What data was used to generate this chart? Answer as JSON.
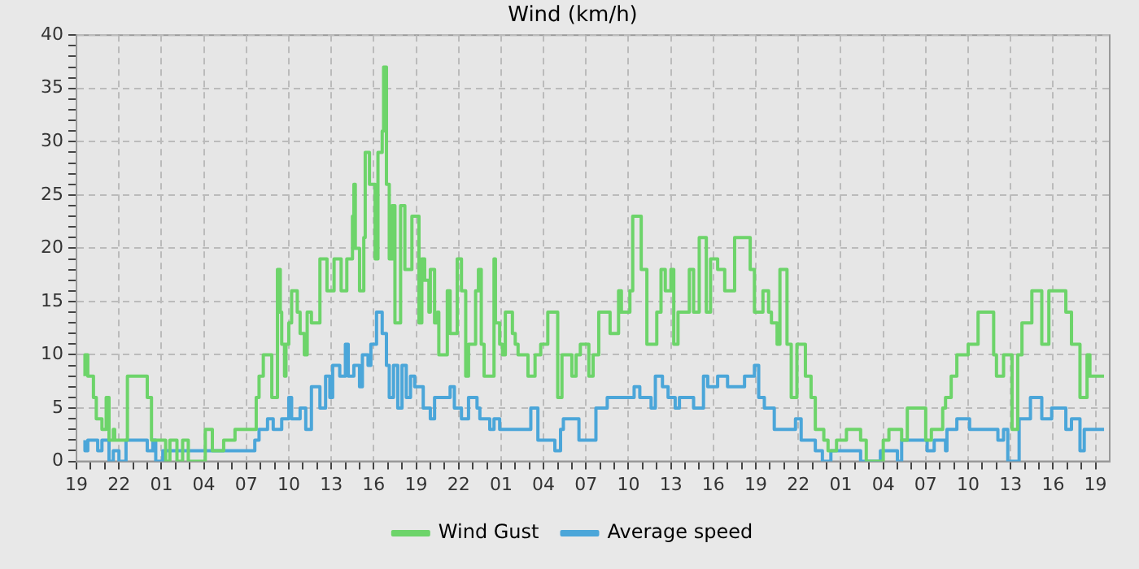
{
  "chart_data": {
    "type": "step",
    "title": "Wind (km/h)",
    "legend": "bottom",
    "grid": true,
    "xlim": [
      "--01-01T19:00",
      "--01-04T20:00"
    ],
    "ylim": [
      0,
      40
    ],
    "xticks": [
      {
        "value": "--01-01T19:00",
        "label": "19"
      },
      {
        "value": "--01-01T20:00",
        "label": null
      },
      {
        "value": "--01-01T21:00",
        "label": null
      },
      {
        "value": "--01-01T22:00",
        "label": "22"
      },
      {
        "value": "--01-01T23:00",
        "label": null
      },
      {
        "value": "--01-02T00:00",
        "label": null
      },
      {
        "value": "--01-02T01:00",
        "label": "01"
      },
      {
        "value": "--01-02T02:00",
        "label": null
      },
      {
        "value": "--01-02T03:00",
        "label": null
      },
      {
        "value": "--01-02T04:00",
        "label": "04"
      },
      {
        "value": "--01-02T05:00",
        "label": null
      },
      {
        "value": "--01-02T06:00",
        "label": null
      },
      {
        "value": "--01-02T07:00",
        "label": "07"
      },
      {
        "value": "--01-02T08:00",
        "label": null
      },
      {
        "value": "--01-02T09:00",
        "label": null
      },
      {
        "value": "--01-02T10:00",
        "label": "10"
      },
      {
        "value": "--01-02T11:00",
        "label": null
      },
      {
        "value": "--01-02T12:00",
        "label": null
      },
      {
        "value": "--01-02T13:00",
        "label": "13"
      },
      {
        "value": "--01-02T14:00",
        "label": null
      },
      {
        "value": "--01-02T15:00",
        "label": null
      },
      {
        "value": "--01-02T16:00",
        "label": "16"
      },
      {
        "value": "--01-02T17:00",
        "label": null
      },
      {
        "value": "--01-02T18:00",
        "label": null
      },
      {
        "value": "--01-02T19:00",
        "label": "19"
      },
      {
        "value": "--01-02T20:00",
        "label": null
      },
      {
        "value": "--01-02T21:00",
        "label": null
      },
      {
        "value": "--01-02T22:00",
        "label": "22"
      },
      {
        "value": "--01-02T23:00",
        "label": null
      },
      {
        "value": "--01-03T00:00",
        "label": null
      },
      {
        "value": "--01-03T01:00",
        "label": "01"
      },
      {
        "value": "--01-03T02:00",
        "label": null
      },
      {
        "value": "--01-03T03:00",
        "label": null
      },
      {
        "value": "--01-03T04:00",
        "label": "04"
      },
      {
        "value": "--01-03T05:00",
        "label": null
      },
      {
        "value": "--01-03T06:00",
        "label": null
      },
      {
        "value": "--01-03T07:00",
        "label": "07"
      },
      {
        "value": "--01-03T08:00",
        "label": null
      },
      {
        "value": "--01-03T09:00",
        "label": null
      },
      {
        "value": "--01-03T10:00",
        "label": "10"
      },
      {
        "value": "--01-03T11:00",
        "label": null
      },
      {
        "value": "--01-03T12:00",
        "label": null
      },
      {
        "value": "--01-03T13:00",
        "label": "13"
      },
      {
        "value": "--01-03T14:00",
        "label": null
      },
      {
        "value": "--01-03T15:00",
        "label": null
      },
      {
        "value": "--01-03T16:00",
        "label": "16"
      },
      {
        "value": "--01-03T17:00",
        "label": null
      },
      {
        "value": "--01-03T18:00",
        "label": null
      },
      {
        "value": "--01-03T19:00",
        "label": "19"
      },
      {
        "value": "--01-03T20:00",
        "label": null
      },
      {
        "value": "--01-03T21:00",
        "label": null
      },
      {
        "value": "--01-03T22:00",
        "label": "22"
      },
      {
        "value": "--01-03T23:00",
        "label": null
      },
      {
        "value": "--01-04T00:00",
        "label": null
      },
      {
        "value": "--01-04T01:00",
        "label": "01"
      },
      {
        "value": "--01-04T02:00",
        "label": null
      },
      {
        "value": "--01-04T03:00",
        "label": null
      },
      {
        "value": "--01-04T04:00",
        "label": "04"
      },
      {
        "value": "--01-04T05:00",
        "label": null
      },
      {
        "value": "--01-04T06:00",
        "label": null
      },
      {
        "value": "--01-04T07:00",
        "label": "07"
      },
      {
        "value": "--01-04T08:00",
        "label": null
      },
      {
        "value": "--01-04T09:00",
        "label": null
      },
      {
        "value": "--01-04T10:00",
        "label": "10"
      },
      {
        "value": "--01-04T11:00",
        "label": null
      },
      {
        "value": "--01-04T12:00",
        "label": null
      },
      {
        "value": "--01-04T13:00",
        "label": "13"
      },
      {
        "value": "--01-04T14:00",
        "label": null
      },
      {
        "value": "--01-04T15:00",
        "label": null
      },
      {
        "value": "--01-04T16:00",
        "label": "16"
      },
      {
        "value": "--01-04T17:00",
        "label": null
      },
      {
        "value": "--01-04T18:00",
        "label": null
      },
      {
        "value": "--01-04T19:00",
        "label": "19"
      }
    ],
    "yticks": [
      0,
      {
        "value": 1,
        "label": null
      },
      {
        "value": 2,
        "label": null
      },
      {
        "value": 3,
        "label": null
      },
      {
        "value": 4,
        "label": null
      },
      5,
      {
        "value": 6,
        "label": null
      },
      {
        "value": 7,
        "label": null
      },
      {
        "value": 8,
        "label": null
      },
      {
        "value": 9,
        "label": null
      },
      10,
      {
        "value": 11,
        "label": null
      },
      {
        "value": 12,
        "label": null
      },
      {
        "value": 13,
        "label": null
      },
      {
        "value": 14,
        "label": null
      },
      15,
      {
        "value": 16,
        "label": null
      },
      {
        "value": 17,
        "label": null
      },
      {
        "value": 18,
        "label": null
      },
      {
        "value": 19,
        "label": null
      },
      20,
      {
        "value": 21,
        "label": null
      },
      {
        "value": 22,
        "label": null
      },
      {
        "value": 23,
        "label": null
      },
      {
        "value": 24,
        "label": null
      },
      25,
      {
        "value": 26,
        "label": null
      },
      {
        "value": 27,
        "label": null
      },
      {
        "value": 28,
        "label": null
      },
      {
        "value": 29,
        "label": null
      },
      30,
      {
        "value": 31,
        "label": null
      },
      {
        "value": 32,
        "label": null
      },
      {
        "value": 33,
        "label": null
      },
      {
        "value": 34,
        "label": null
      },
      35,
      {
        "value": 36,
        "label": null
      },
      {
        "value": 37,
        "label": null
      },
      {
        "value": 38,
        "label": null
      },
      {
        "value": 39,
        "label": null
      },
      40
    ],
    "series": [
      {
        "name": "Wind Gust",
        "color": "#6dd46a",
        "x": [
          "--01-01T19:36",
          "--01-01T19:48",
          "--01-01T20:12",
          "--01-01T20:24",
          "--01-01T20:48",
          "--01-01T21:06",
          "--01-01T21:18",
          "--01-01T21:36",
          "--01-01T21:42",
          "--01-01T22:36",
          "--01-02T00:00",
          "--01-02T00:18",
          "--01-02T01:18",
          "--01-02T01:36",
          "--01-02T02:06",
          "--01-02T02:30",
          "--01-02T02:54",
          "--01-02T04:06",
          "--01-02T04:36",
          "--01-02T05:24",
          "--01-02T06:12",
          "--01-02T07:42",
          "--01-02T07:54",
          "--01-02T08:12",
          "--01-02T08:48",
          "--01-02T09:12",
          "--01-02T09:24",
          "--01-02T09:30",
          "--01-02T09:42",
          "--01-02T09:48",
          "--01-02T10:00",
          "--01-02T10:12",
          "--01-02T10:36",
          "--01-02T10:48",
          "--01-02T11:06",
          "--01-02T11:18",
          "--01-02T11:36",
          "--01-02T12:12",
          "--01-02T12:42",
          "--01-02T13:12",
          "--01-02T13:42",
          "--01-02T14:06",
          "--01-02T14:30",
          "--01-02T14:36",
          "--01-02T14:42",
          "--01-02T15:00",
          "--01-02T15:18",
          "--01-02T15:24",
          "--01-02T15:42",
          "--01-02T16:06",
          "--01-02T16:18",
          "--01-02T16:36",
          "--01-02T16:42",
          "--01-02T16:54",
          "--01-02T17:06",
          "--01-02T17:18",
          "--01-02T17:30",
          "--01-02T17:54",
          "--01-02T18:12",
          "--01-02T18:42",
          "--01-02T19:12",
          "--01-02T19:24",
          "--01-02T19:36",
          "--01-02T19:54",
          "--01-02T20:00",
          "--01-02T20:18",
          "--01-02T20:30",
          "--01-02T20:36",
          "--01-02T21:12",
          "--01-02T21:24",
          "--01-02T21:54",
          "--01-02T22:12",
          "--01-02T22:30",
          "--01-02T22:42",
          "--01-02T23:12",
          "--01-02T23:24",
          "--01-02T23:36",
          "--01-02T23:48",
          "--01-03T00:30",
          "--01-03T00:36",
          "--01-03T00:54",
          "--01-03T01:06",
          "--01-03T01:18",
          "--01-03T01:48",
          "--01-03T02:00",
          "--01-03T02:12",
          "--01-03T02:54",
          "--01-03T03:24",
          "--01-03T03:48",
          "--01-03T04:18",
          "--01-03T05:00",
          "--01-03T05:18",
          "--01-03T06:00",
          "--01-03T06:18",
          "--01-03T06:36",
          "--01-03T07:12",
          "--01-03T07:30",
          "--01-03T07:54",
          "--01-03T08:42",
          "--01-03T09:18",
          "--01-03T09:30",
          "--01-03T10:06",
          "--01-03T10:18",
          "--01-03T10:54",
          "--01-03T11:18",
          "--01-03T12:00",
          "--01-03T12:18",
          "--01-03T12:36",
          "--01-03T13:00",
          "--01-03T13:12",
          "--01-03T13:30",
          "--01-03T14:18",
          "--01-03T14:36",
          "--01-03T15:00",
          "--01-03T15:30",
          "--01-03T15:48",
          "--01-03T16:18",
          "--01-03T16:48",
          "--01-03T17:30",
          "--01-03T18:36",
          "--01-03T18:54",
          "--01-03T19:30",
          "--01-03T19:54",
          "--01-03T20:06",
          "--01-03T20:30",
          "--01-03T20:42",
          "--01-03T21:12",
          "--01-03T21:30",
          "--01-03T21:54",
          "--01-03T22:30",
          "--01-03T22:54",
          "--01-03T23:12",
          "--01-03T23:48",
          "--01-04T00:06",
          "--01-04T00:42",
          "--01-04T01:24",
          "--01-04T02:24",
          "--01-04T02:48",
          "--01-04T04:00",
          "--01-04T04:24",
          "--01-04T05:18",
          "--01-04T05:42",
          "--01-04T07:00",
          "--01-04T07:24",
          "--01-04T08:12",
          "--01-04T08:24",
          "--01-04T08:48",
          "--01-04T09:12",
          "--01-04T10:00",
          "--01-04T10:42",
          "--01-04T11:48",
          "--01-04T12:00",
          "--01-04T12:30",
          "--01-04T13:06",
          "--01-04T13:30",
          "--01-04T13:48",
          "--01-04T14:30",
          "--01-04T15:12",
          "--01-04T15:42",
          "--01-04T16:54",
          "--01-04T17:18",
          "--01-04T17:54",
          "--01-04T18:24",
          "--01-04T18:36",
          "--01-04T19:00",
          "--01-04T19:36"
        ],
        "values": [
          8,
          10,
          8,
          6,
          4,
          3,
          6,
          2,
          3,
          2,
          8,
          6,
          2,
          0,
          2,
          0,
          2,
          0,
          3,
          1,
          2,
          3,
          6,
          8,
          10,
          6,
          18,
          14,
          11,
          8,
          11,
          13,
          16,
          14,
          12,
          10,
          14,
          13,
          19,
          16,
          19,
          16,
          19,
          23,
          26,
          20,
          16,
          21,
          29,
          26,
          19,
          29,
          31,
          37,
          26,
          19,
          24,
          13,
          24,
          18,
          23,
          13,
          19,
          17,
          14,
          18,
          13,
          14,
          10,
          16,
          12,
          19,
          16,
          8,
          11,
          16,
          18,
          11,
          8,
          19,
          13,
          11,
          10,
          14,
          12,
          11,
          10,
          8,
          10,
          11,
          14,
          6,
          10,
          8,
          10,
          11,
          8,
          10,
          14,
          12,
          16,
          14,
          16,
          23,
          18,
          11,
          14,
          18,
          16,
          18,
          11,
          14,
          18,
          14,
          21,
          14,
          19,
          18,
          16,
          21,
          18,
          14,
          16,
          14,
          13,
          11,
          18,
          11,
          6,
          11,
          8,
          6,
          3,
          2,
          1,
          2,
          3,
          2,
          0,
          2,
          3,
          2,
          5,
          2,
          3,
          5,
          6,
          8,
          10,
          11,
          14,
          10,
          8,
          10,
          3,
          10,
          13,
          16,
          11,
          16,
          14,
          11,
          6,
          10,
          8,
          8
        ]
      },
      {
        "name": "Average speed",
        "color": "#4ba6d9",
        "x": [
          "--01-01T19:36",
          "--01-01T19:48",
          "--01-01T20:30",
          "--01-01T20:48",
          "--01-01T21:18",
          "--01-01T21:36",
          "--01-01T22:00",
          "--01-01T22:30",
          "--01-02T00:00",
          "--01-02T00:24",
          "--01-02T00:36",
          "--01-02T01:06",
          "--01-02T07:36",
          "--01-02T07:54",
          "--01-02T08:30",
          "--01-02T08:54",
          "--01-02T09:30",
          "--01-02T10:00",
          "--01-02T10:12",
          "--01-02T10:48",
          "--01-02T11:12",
          "--01-02T11:36",
          "--01-02T12:12",
          "--01-02T12:36",
          "--01-02T12:54",
          "--01-02T13:06",
          "--01-02T13:36",
          "--01-02T14:00",
          "--01-02T14:12",
          "--01-02T14:36",
          "--01-02T15:00",
          "--01-02T15:12",
          "--01-02T15:36",
          "--01-02T15:48",
          "--01-02T16:12",
          "--01-02T16:36",
          "--01-02T16:54",
          "--01-02T17:06",
          "--01-02T17:24",
          "--01-02T17:42",
          "--01-02T18:00",
          "--01-02T18:18",
          "--01-02T18:36",
          "--01-02T18:54",
          "--01-02T19:30",
          "--01-02T20:00",
          "--01-02T20:18",
          "--01-02T21:24",
          "--01-02T21:42",
          "--01-02T22:12",
          "--01-02T22:42",
          "--01-02T23:18",
          "--01-02T23:30",
          "--01-03T00:12",
          "--01-03T00:30",
          "--01-03T00:54",
          "--01-03T03:06",
          "--01-03T03:36",
          "--01-03T04:48",
          "--01-03T05:12",
          "--01-03T05:24",
          "--01-03T06:30",
          "--01-03T07:42",
          "--01-03T08:30",
          "--01-03T10:24",
          "--01-03T10:48",
          "--01-03T11:36",
          "--01-03T11:54",
          "--01-03T12:24",
          "--01-03T12:48",
          "--01-03T13:18",
          "--01-03T13:36",
          "--01-03T14:36",
          "--01-03T15:18",
          "--01-03T15:36",
          "--01-03T16:18",
          "--01-03T17:00",
          "--01-03T18:12",
          "--01-03T18:54",
          "--01-03T19:12",
          "--01-03T19:36",
          "--01-03T20:18",
          "--01-03T21:48",
          "--01-03T22:12",
          "--01-03T23:12",
          "--01-03T23:42",
          "--01-04T00:18",
          "--01-04T02:24",
          "--01-04T03:48",
          "--01-04T05:00",
          "--01-04T05:18",
          "--01-04T07:06",
          "--01-04T07:36",
          "--01-04T08:24",
          "--01-04T08:30",
          "--01-04T09:12",
          "--01-04T10:06",
          "--01-04T12:06",
          "--01-04T12:30",
          "--01-04T12:48",
          "--01-04T13:36",
          "--01-04T14:24",
          "--01-04T15:12",
          "--01-04T15:54",
          "--01-04T16:54",
          "--01-04T17:18",
          "--01-04T17:54",
          "--01-04T18:12",
          "--01-04T18:30",
          "--01-04T19:36"
        ],
        "values": [
          2,
          1,
          2,
          1,
          2,
          0,
          1,
          0,
          2,
          1,
          2,
          0,
          1,
          2,
          3,
          4,
          3,
          4,
          6,
          4,
          5,
          3,
          7,
          5,
          8,
          6,
          9,
          8,
          11,
          8,
          9,
          7,
          10,
          9,
          11,
          14,
          12,
          9,
          6,
          9,
          5,
          9,
          6,
          8,
          7,
          5,
          4,
          6,
          7,
          5,
          4,
          6,
          5,
          4,
          3,
          4,
          3,
          5,
          2,
          1,
          3,
          4,
          2,
          5,
          6,
          7,
          6,
          5,
          8,
          7,
          6,
          5,
          6,
          5,
          8,
          7,
          8,
          7,
          8,
          9,
          6,
          5,
          3,
          4,
          2,
          1,
          0,
          1,
          0,
          1,
          0,
          2,
          1,
          2,
          1,
          3,
          4,
          3,
          2,
          3,
          0,
          4,
          6,
          4,
          5,
          3,
          4,
          1,
          3,
          3
        ]
      }
    ]
  }
}
